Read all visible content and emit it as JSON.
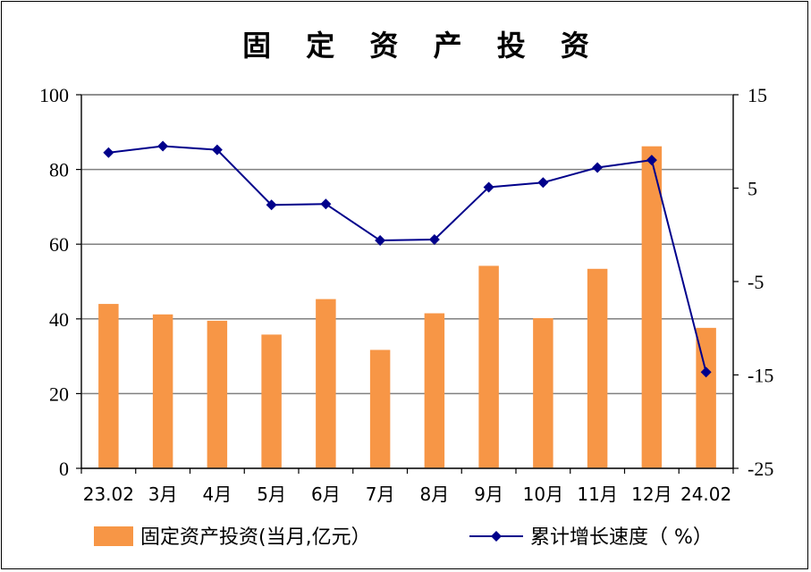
{
  "chart_data": {
    "type": "bar",
    "title": "固 定 资 产 投 资",
    "categories": [
      "23.02",
      "3月",
      "4月",
      "5月",
      "6月",
      "7月",
      "8月",
      "9月",
      "10月",
      "11月",
      "12月",
      "24.02"
    ],
    "series": [
      {
        "name": "固定资产投资(当月,亿元)",
        "type": "bar",
        "axis": "left",
        "color": "#F79646",
        "values": [
          44.0,
          41.2,
          39.5,
          35.8,
          45.3,
          31.7,
          41.5,
          54.2,
          40.2,
          53.4,
          86.2,
          37.6
        ]
      },
      {
        "name": "累计增长速度(%)",
        "type": "line",
        "axis": "right",
        "color": "#00008B",
        "values": [
          8.8,
          9.5,
          9.1,
          3.2,
          3.3,
          -0.6,
          -0.5,
          5.1,
          5.6,
          7.2,
          8.0,
          -14.7
        ]
      }
    ],
    "y_left": {
      "min": 0,
      "max": 100,
      "ticks": [
        "0",
        "20",
        "40",
        "60",
        "80",
        "100"
      ]
    },
    "y_right": {
      "min": -25,
      "max": 15,
      "ticks": [
        "-25",
        "-15",
        "-5",
        "5",
        "15"
      ]
    },
    "grid": true,
    "legend": {
      "position": "bottom",
      "bar_label": "固定资产投资(当月,亿元）",
      "line_label": "累计增长速度（ %）"
    }
  }
}
